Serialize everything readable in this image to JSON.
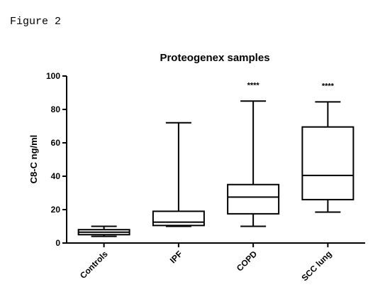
{
  "figure_label": "Figure 2",
  "chart_data": {
    "type": "box",
    "title": "Proteogenex samples",
    "xlabel": "",
    "ylabel": "C8-C ng/ml",
    "ylim": [
      0,
      100
    ],
    "yticks": [
      0,
      20,
      40,
      60,
      80,
      100
    ],
    "grid": false,
    "categories": [
      "Controls",
      "IPF",
      "COPD",
      "SCC lung"
    ],
    "boxes": [
      {
        "min": 4,
        "q1": 5,
        "median": 6.5,
        "q3": 8,
        "max": 10
      },
      {
        "min": 10,
        "q1": 10.5,
        "median": 12.5,
        "q3": 19,
        "max": 72
      },
      {
        "min": 10,
        "q1": 17.5,
        "median": 27.5,
        "q3": 35,
        "max": 85
      },
      {
        "min": 18.5,
        "q1": 26,
        "median": 40.5,
        "q3": 69.5,
        "max": 84.5
      }
    ],
    "annotations": [
      "",
      "",
      "****",
      "****"
    ]
  }
}
